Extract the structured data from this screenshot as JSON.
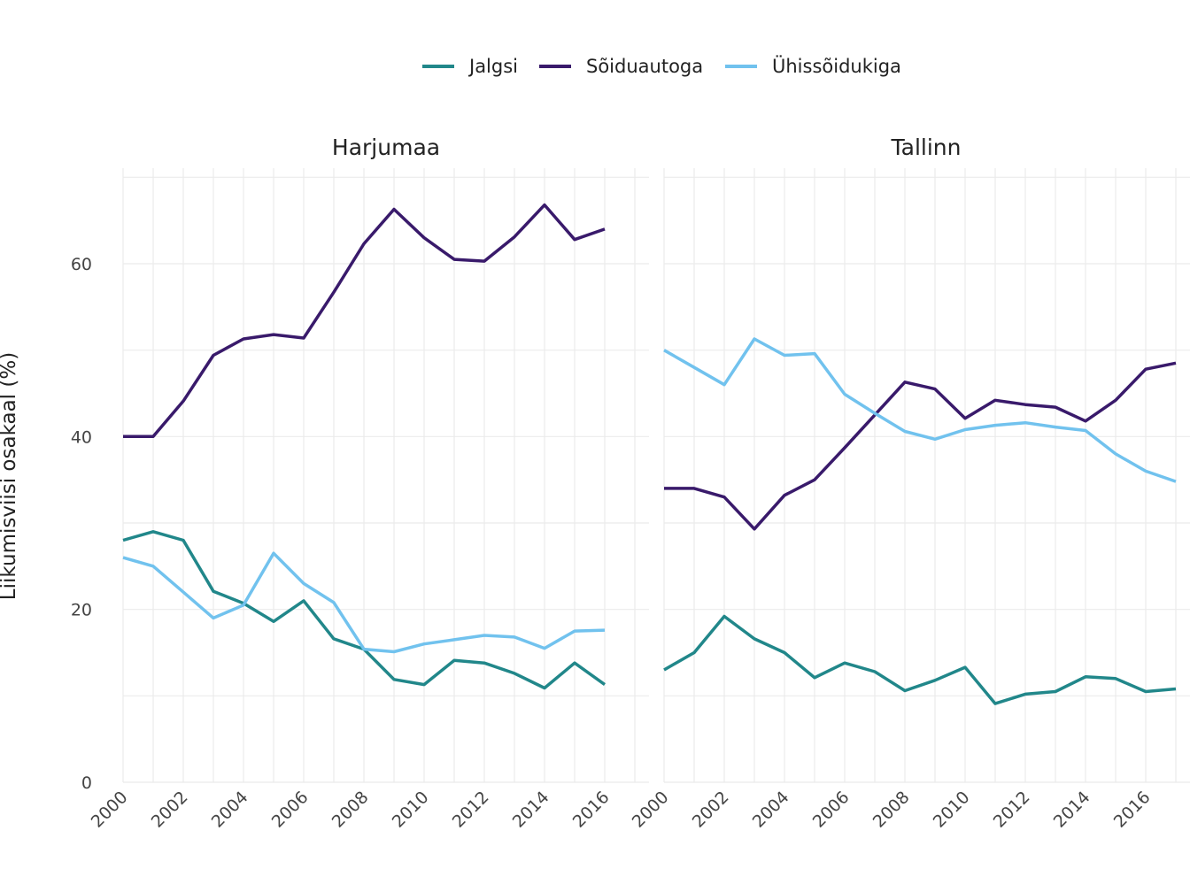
{
  "chart_data": {
    "type": "line",
    "ylabel": "Liikumisviisi osakaal (%)",
    "legend_position": "top",
    "grid": true,
    "ylim": [
      0,
      70
    ],
    "xlim": [
      2000,
      2017
    ],
    "y_ticks": [
      0,
      20,
      40,
      60
    ],
    "x_ticks": [
      2000,
      2002,
      2004,
      2006,
      2008,
      2010,
      2012,
      2014,
      2016
    ],
    "x": [
      2000,
      2001,
      2002,
      2003,
      2004,
      2005,
      2006,
      2007,
      2008,
      2009,
      2010,
      2011,
      2012,
      2013,
      2014,
      2015,
      2016,
      2017
    ],
    "series_meta": [
      {
        "name": "Jalgsi",
        "color": "#21878a"
      },
      {
        "name": "Sõiduautoga",
        "color": "#391a6b"
      },
      {
        "name": "Ühissõidukiga",
        "color": "#71c2ee"
      }
    ],
    "panels": [
      {
        "title": "Harjumaa",
        "series": [
          {
            "name": "Jalgsi",
            "values": [
              28.0,
              29.0,
              28.0,
              22.1,
              20.7,
              18.6,
              21.0,
              16.6,
              15.4,
              11.9,
              11.3,
              14.1,
              13.8,
              12.6,
              10.9,
              13.8,
              11.3,
              null
            ]
          },
          {
            "name": "Sõiduautoga",
            "values": [
              40.0,
              40.0,
              44.1,
              49.4,
              51.3,
              51.8,
              51.4,
              56.7,
              62.3,
              66.3,
              63.0,
              60.5,
              60.3,
              63.1,
              66.8,
              62.8,
              64.0,
              null
            ]
          },
          {
            "name": "Ühissõidukiga",
            "values": [
              26.0,
              25.0,
              22.0,
              19.0,
              20.5,
              26.5,
              23.0,
              20.8,
              15.4,
              15.1,
              16.0,
              16.5,
              17.0,
              16.8,
              15.5,
              17.5,
              17.6,
              null
            ]
          }
        ]
      },
      {
        "title": "Tallinn",
        "series": [
          {
            "name": "Jalgsi",
            "values": [
              13.0,
              15.0,
              19.2,
              16.6,
              15.0,
              12.1,
              13.8,
              12.8,
              10.6,
              11.8,
              13.3,
              9.1,
              10.2,
              10.5,
              12.2,
              12.0,
              10.5,
              10.8
            ]
          },
          {
            "name": "Sõiduautoga",
            "values": [
              34.0,
              34.0,
              33.0,
              29.3,
              33.2,
              35.0,
              38.7,
              42.5,
              46.3,
              45.5,
              42.1,
              44.2,
              43.7,
              43.4,
              41.8,
              44.2,
              47.8,
              48.5
            ]
          },
          {
            "name": "Ühissõidukiga",
            "values": [
              50.0,
              48.0,
              46.0,
              51.3,
              49.4,
              49.6,
              44.9,
              42.7,
              40.6,
              39.7,
              40.8,
              41.3,
              41.6,
              41.1,
              40.7,
              38.0,
              36.0,
              34.8
            ]
          }
        ]
      }
    ]
  }
}
